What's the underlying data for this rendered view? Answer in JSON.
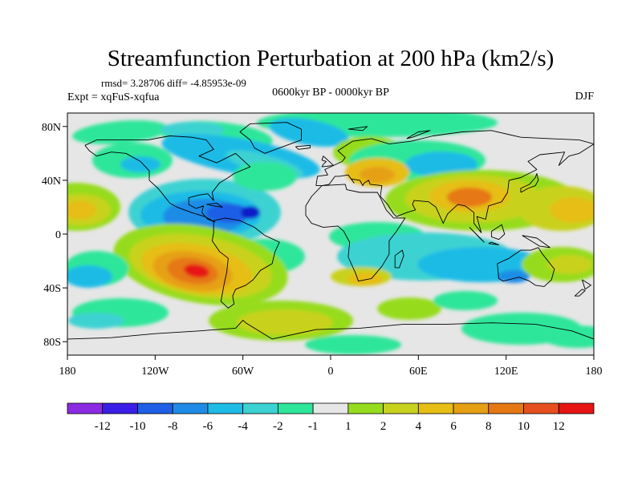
{
  "title": "Streamfunction Perturbation at 200 hPa (km2/s)",
  "stats": "rmsd= 3.28706 diff= -4.85953e-09",
  "experiment": "Expt = xqFuS-xqfua",
  "period": "0600kyr BP - 0000kyr BP",
  "season": "DJF",
  "map": {
    "projection": "equirectangular",
    "lat_ticks": [
      "80N",
      "40N",
      "0",
      "40S",
      "80S"
    ],
    "lon_ticks": [
      "180",
      "120W",
      "60W",
      "0",
      "60E",
      "120E",
      "180"
    ]
  },
  "colorbar": {
    "labels": [
      "-12",
      "-10",
      "-8",
      "-6",
      "-4",
      "-2",
      "-1",
      "1",
      "2",
      "4",
      "6",
      "8",
      "10",
      "12"
    ],
    "colors": [
      "#8a2be2",
      "#3a1ee6",
      "#1e5fe6",
      "#1e8ce6",
      "#1ebbe6",
      "#3cd2d2",
      "#2ee69a",
      "#e6e6e6",
      "#96dc1e",
      "#c8d21e",
      "#e6be14",
      "#e6a014",
      "#e67814",
      "#e6501e",
      "#e61414"
    ]
  },
  "colors": {
    "background": "#e6e6e6",
    "land_outline": "#000000"
  }
}
